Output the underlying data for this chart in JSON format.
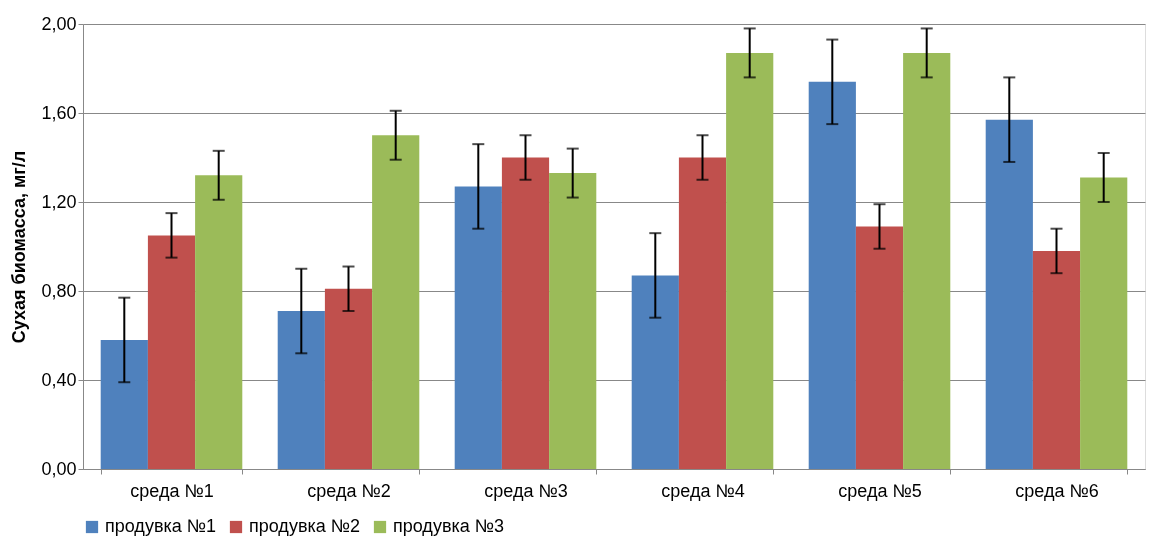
{
  "chart_data": {
    "type": "bar",
    "ylabel": "Сухая биомасса, мг/л",
    "categories": [
      "среда №1",
      "среда №2",
      "среда №3",
      "среда №4",
      "среда №5",
      "среда №6"
    ],
    "series": [
      {
        "name": "продувка №1",
        "color": "#4f81bd",
        "values": [
          0.58,
          0.71,
          1.27,
          0.87,
          1.74,
          1.57
        ],
        "errors": [
          0.19,
          0.19,
          0.19,
          0.19,
          0.19,
          0.19
        ]
      },
      {
        "name": "продувка №2",
        "color": "#c0504d",
        "values": [
          1.05,
          0.81,
          1.4,
          1.4,
          1.09,
          0.98
        ],
        "errors": [
          0.1,
          0.1,
          0.1,
          0.1,
          0.1,
          0.1
        ]
      },
      {
        "name": "продувка №3",
        "color": "#9bbb59",
        "values": [
          1.32,
          1.5,
          1.33,
          1.87,
          1.87,
          1.31
        ],
        "errors": [
          0.11,
          0.11,
          0.11,
          0.11,
          0.11,
          0.11
        ]
      }
    ],
    "ylim": [
      0,
      2
    ],
    "yticks": [
      {
        "value": 0,
        "label": "0,00"
      },
      {
        "value": 0.4,
        "label": "0,40"
      },
      {
        "value": 0.8,
        "label": "0,80"
      },
      {
        "value": 1.2,
        "label": "1,20"
      },
      {
        "value": 1.6,
        "label": "1,60"
      },
      {
        "value": 2,
        "label": "2,00"
      }
    ],
    "grid": "y",
    "legend": "bottom"
  }
}
